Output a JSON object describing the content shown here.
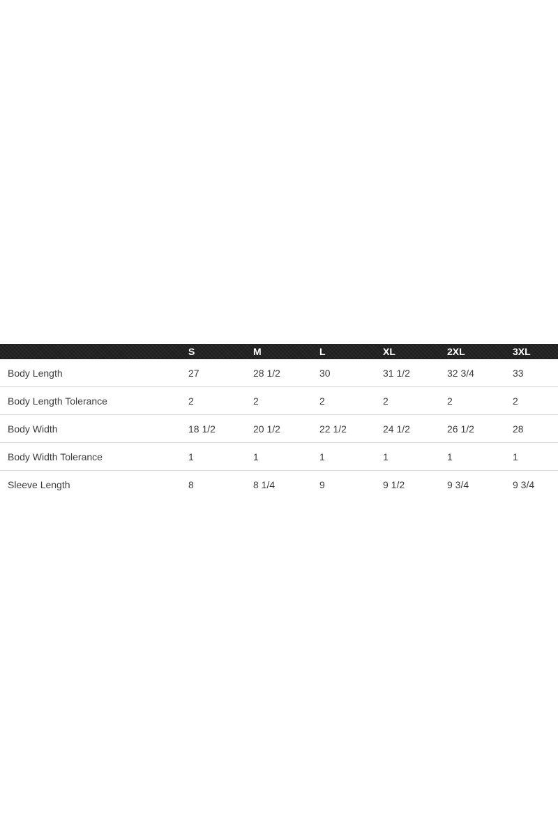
{
  "colors": {
    "page_background": "#ffffff",
    "header_background": "#1e1e1e",
    "header_text": "#ffffff",
    "body_text": "#3c3c3c",
    "divider": "#d6d6d6"
  },
  "chart_data": {
    "type": "table",
    "title": "",
    "columns": [
      "S",
      "M",
      "L",
      "XL",
      "2XL",
      "3XL"
    ],
    "rows": [
      {
        "label": "Body Length",
        "values": [
          "27",
          "28 1/2",
          "30",
          "31 1/2",
          "32 3/4",
          "33"
        ]
      },
      {
        "label": "Body Length Tolerance",
        "values": [
          "2",
          "2",
          "2",
          "2",
          "2",
          "2"
        ]
      },
      {
        "label": "Body Width",
        "values": [
          "18 1/2",
          "20 1/2",
          "22 1/2",
          "24 1/2",
          "26 1/2",
          "28"
        ]
      },
      {
        "label": "Body Width Tolerance",
        "values": [
          "1",
          "1",
          "1",
          "1",
          "1",
          "1"
        ]
      },
      {
        "label": "Sleeve Length",
        "values": [
          "8",
          "8 1/4",
          "9",
          "9 1/2",
          "9 3/4",
          "9 3/4"
        ]
      }
    ],
    "layout": {
      "legend": "none",
      "grid": "horizontal-dividers-only",
      "header_row": "dark-textured-bar",
      "column_alignment": "left"
    }
  }
}
